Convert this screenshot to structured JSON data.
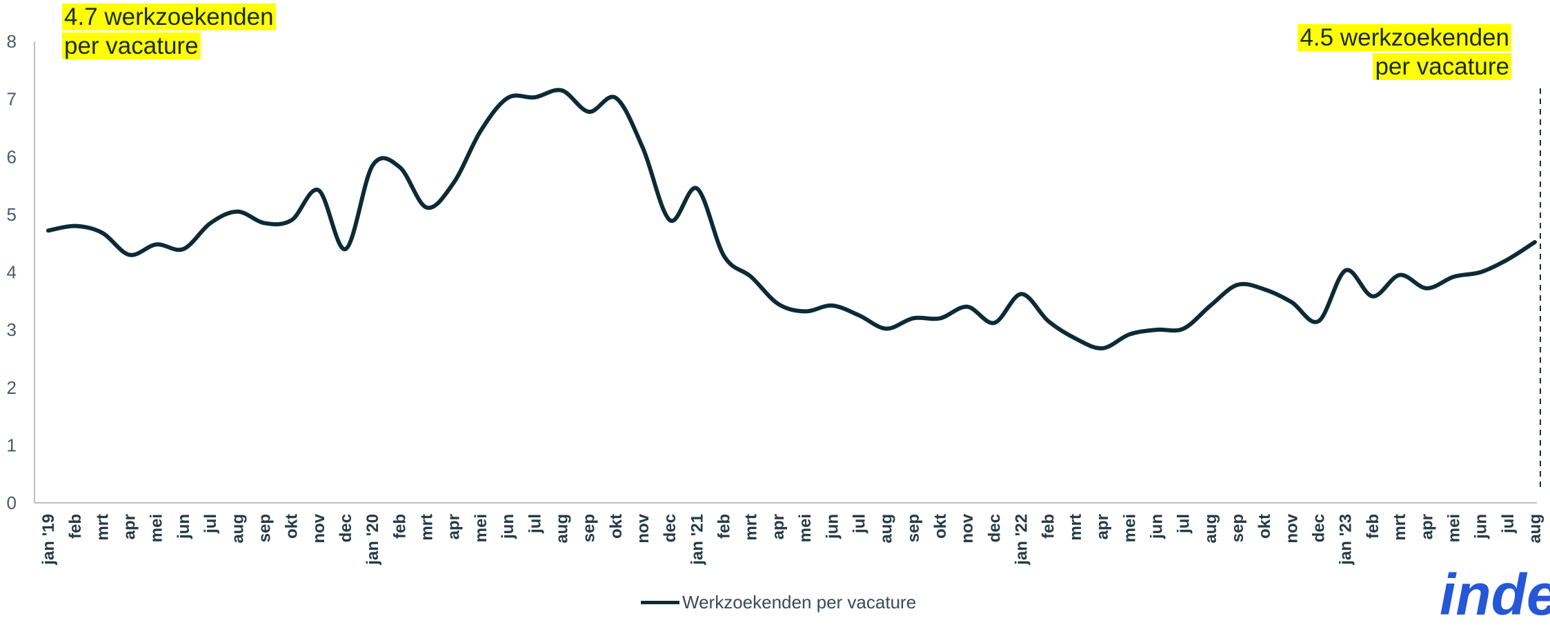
{
  "chart_data": {
    "type": "line",
    "title": "",
    "xlabel": "",
    "ylabel": "",
    "ylim": [
      0,
      8
    ],
    "yticks": [
      "0",
      "1",
      "2",
      "3",
      "4",
      "5",
      "6",
      "7",
      "8"
    ],
    "grid": false,
    "legend_position": "bottom",
    "categories": [
      "jan '19",
      "feb",
      "mrt",
      "apr",
      "mei",
      "jun",
      "jul",
      "aug",
      "sep",
      "okt",
      "nov",
      "dec",
      "jan '20",
      "feb",
      "mrt",
      "apr",
      "mei",
      "jun",
      "jul",
      "aug",
      "sep",
      "okt",
      "nov",
      "dec",
      "jan '21",
      "feb",
      "mrt",
      "apr",
      "mei",
      "jun",
      "jul",
      "aug",
      "sep",
      "okt",
      "nov",
      "dec",
      "jan '22",
      "feb",
      "mrt",
      "apr",
      "mei",
      "jun",
      "jul",
      "aug",
      "sep",
      "okt",
      "nov",
      "dec",
      "jan '23",
      "feb",
      "mrt",
      "apr",
      "mei",
      "jun",
      "jul",
      "aug"
    ],
    "series": [
      {
        "name": "Werkzoekenden per vacature",
        "color": "#0d2a36",
        "values": [
          4.72,
          4.8,
          4.68,
          4.3,
          4.48,
          4.4,
          4.85,
          5.05,
          4.85,
          4.9,
          5.42,
          4.4,
          5.85,
          5.82,
          5.12,
          5.55,
          6.45,
          7.02,
          7.03,
          7.15,
          6.78,
          7.02,
          6.15,
          4.9,
          5.45,
          4.28,
          3.92,
          3.45,
          3.32,
          3.42,
          3.25,
          3.02,
          3.2,
          3.2,
          3.4,
          3.12,
          3.62,
          3.15,
          2.85,
          2.68,
          2.92,
          3.0,
          3.02,
          3.42,
          3.78,
          3.7,
          3.48,
          3.15,
          4.03,
          3.58,
          3.95,
          3.72,
          3.92,
          4.0,
          4.22,
          4.52
        ]
      }
    ],
    "annotations": {
      "left": [
        "4.7 werkzoekenden",
        "per vacature"
      ],
      "right": [
        "4.5 werkzoekenden",
        "per vacature"
      ]
    },
    "reference_line": {
      "style": "dashed",
      "at_category": "aug"
    }
  },
  "legend": {
    "label": "Werkzoekenden per vacature"
  },
  "logo": {
    "text": "inde",
    "color": "#2557d6"
  }
}
